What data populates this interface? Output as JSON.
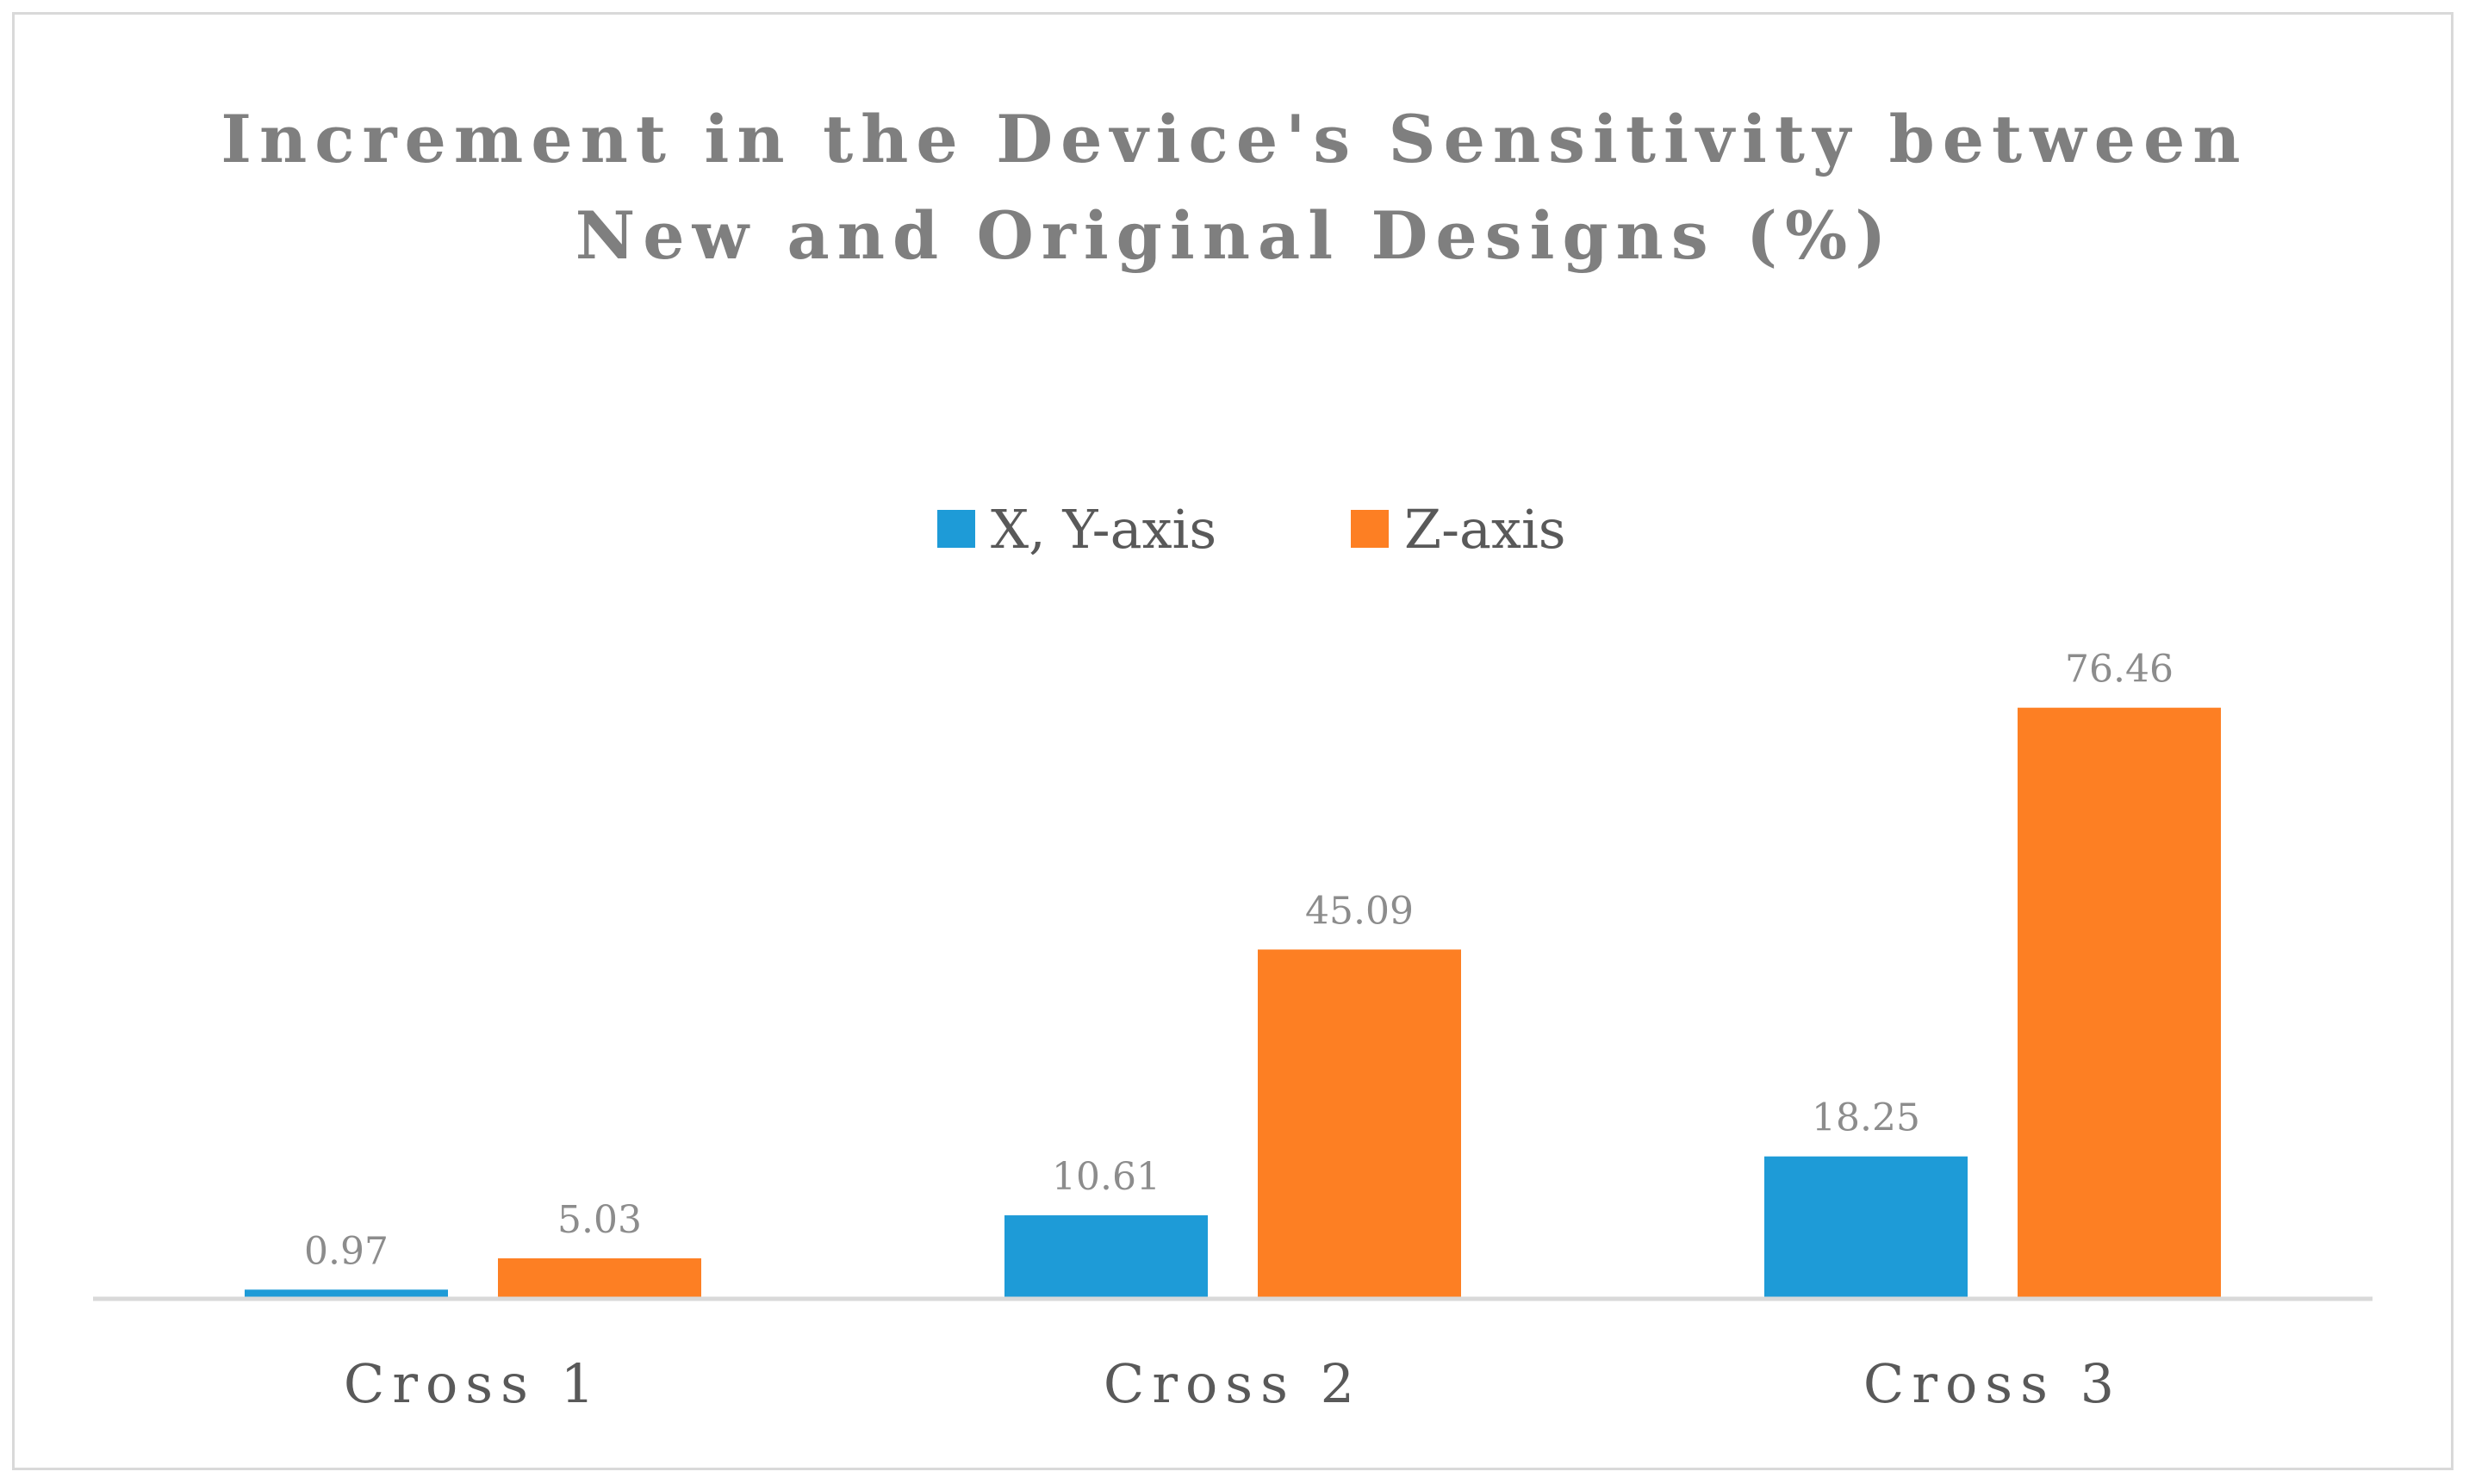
{
  "chart_data": {
    "type": "bar",
    "title_lines": [
      "Increment in the Device's Sensitivity between",
      "New and Original Designs (%)"
    ],
    "categories": [
      "Cross 1",
      "Cross 2",
      "Cross 3"
    ],
    "series": [
      {
        "name": "X, Y-axis",
        "color": "#1e9bd7",
        "values": [
          0.97,
          10.61,
          18.25
        ],
        "labels": [
          "0.97",
          "10.61",
          "18.25"
        ]
      },
      {
        "name": "Z-axis",
        "color": "#fd7f23",
        "values": [
          5.03,
          45.09,
          76.46
        ],
        "labels": [
          "5.03",
          "45.09",
          "76.46"
        ]
      }
    ],
    "ylim": [
      0,
      100
    ],
    "legend_position": "top-center",
    "grid": false,
    "xlabel": "",
    "ylabel": ""
  }
}
